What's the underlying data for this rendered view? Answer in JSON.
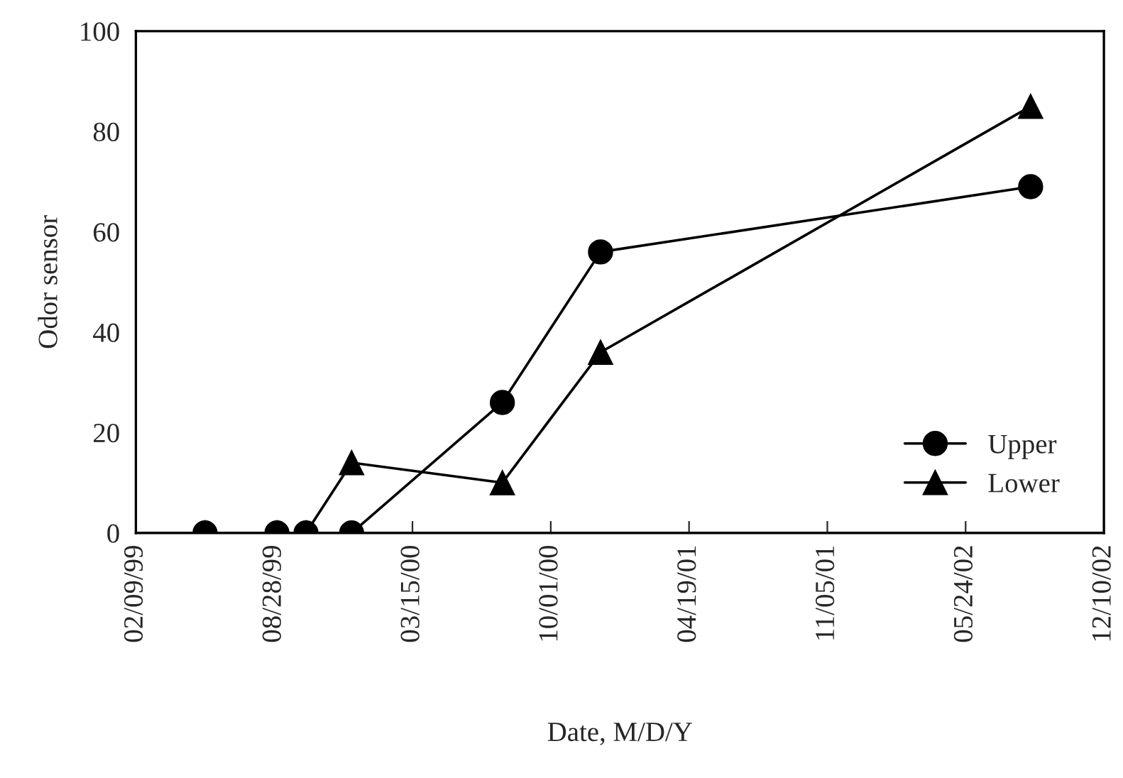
{
  "chart_data": {
    "type": "line",
    "xlabel": "Date, M/D/Y",
    "ylabel": "Odor sensor",
    "x": [
      "1999-05-20",
      "1999-09-01",
      "1999-10-13",
      "1999-12-18",
      "2000-07-23",
      "2000-12-12",
      "2002-08-26"
    ],
    "series": [
      {
        "name": "Upper",
        "color": "#000000",
        "marker": "circle",
        "values": [
          0,
          0,
          0,
          0,
          26,
          56,
          69
        ]
      },
      {
        "name": "Lower",
        "color": "#000000",
        "marker": "triangle",
        "values": [
          0,
          0,
          0,
          14,
          10,
          36,
          85
        ]
      }
    ],
    "xlim": [
      "1999-02-09",
      "2002-12-10"
    ],
    "xticks": [
      {
        "value": "1999-02-09",
        "label": "02/09/99"
      },
      {
        "value": "1999-08-28",
        "label": "08/28/99"
      },
      {
        "value": "2000-03-15",
        "label": "03/15/00"
      },
      {
        "value": "2000-10-01",
        "label": "10/01/00"
      },
      {
        "value": "2001-04-19",
        "label": "04/19/01"
      },
      {
        "value": "2001-11-05",
        "label": "11/05/01"
      },
      {
        "value": "2002-05-24",
        "label": "05/24/02"
      },
      {
        "value": "2002-12-10",
        "label": "12/10/02"
      }
    ],
    "ylim": [
      0,
      100
    ],
    "yticks": [
      0,
      20,
      40,
      60,
      80,
      100
    ],
    "grid": false,
    "legend": "bottom right",
    "line_style": "solid"
  }
}
